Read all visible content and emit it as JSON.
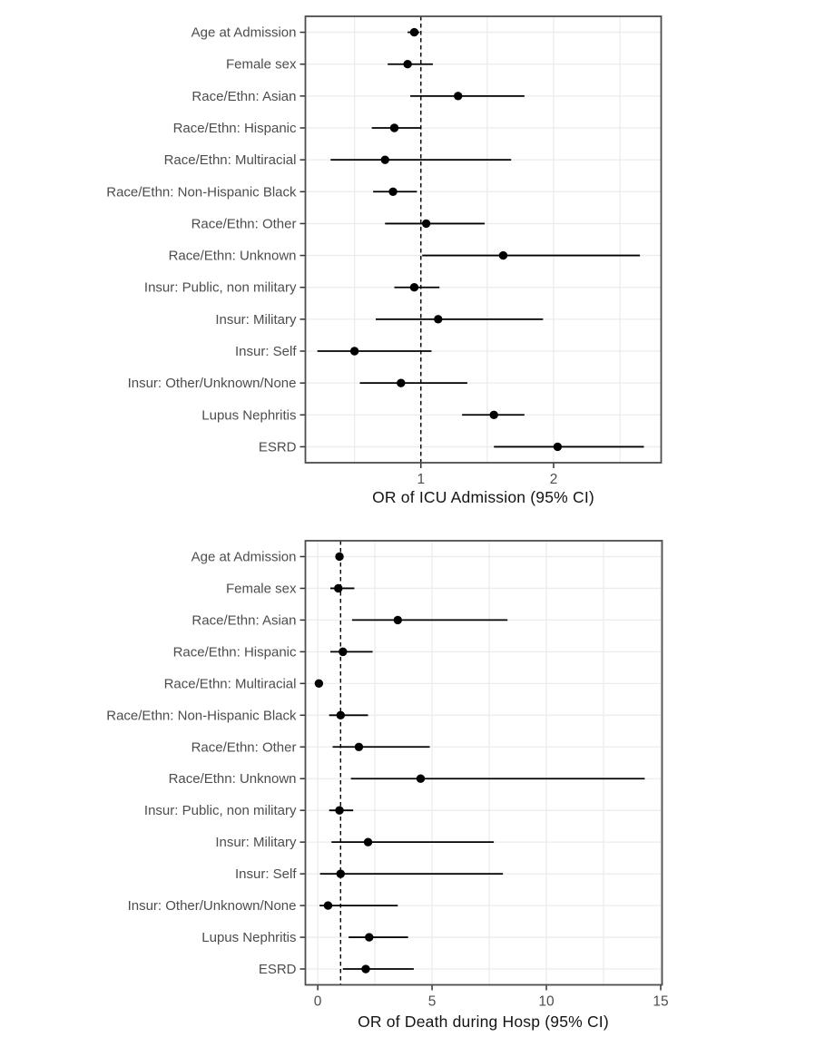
{
  "page": {
    "background": "#ffffff",
    "description": "Two stacked forest plots of odds ratios with 95% confidence intervals"
  },
  "styles": {
    "panel_border_color": "#4d4d4d",
    "grid_color": "#ececec",
    "tick_color": "#333333",
    "axis_text_color": "#4d4d4d",
    "title_color": "#141414",
    "data_color": "#000000",
    "panel_background": "#ffffff"
  },
  "chart_data": [
    {
      "type": "scatter",
      "subtype": "forest-plot",
      "orientation": "horizontal",
      "title": "",
      "xlabel": "OR of ICU Admission (95% CI)",
      "ylabel": "",
      "xlim": [
        0.13,
        2.81
      ],
      "x_ticks": [
        1,
        2
      ],
      "x_gridlines": [
        0.5,
        1,
        1.5,
        2,
        2.5
      ],
      "reference_line_x": 1,
      "reference_line_style": "dashed",
      "grid": true,
      "legend": false,
      "categories": [
        "Age at Admission",
        "Female sex",
        "Race/Ethn: Asian",
        "Race/Ethn: Hispanic",
        "Race/Ethn: Multiracial",
        "Race/Ethn: Non-Hispanic Black",
        "Race/Ethn: Other",
        "Race/Ethn: Unknown",
        "Insur: Public, non military",
        "Insur: Military",
        "Insur: Self",
        "Insur: Other/Unknown/None",
        "Lupus Nephritis",
        "ESRD"
      ],
      "series": [
        {
          "name": "Odds Ratio",
          "values": [
            0.95,
            0.9,
            1.28,
            0.8,
            0.73,
            0.79,
            1.04,
            1.62,
            0.95,
            1.13,
            0.5,
            0.85,
            1.55,
            2.03
          ]
        },
        {
          "name": "CI lower 95",
          "values": [
            0.9,
            0.75,
            0.92,
            0.63,
            0.32,
            0.64,
            0.73,
            1.01,
            0.8,
            0.66,
            0.22,
            0.54,
            1.31,
            1.55
          ]
        },
        {
          "name": "CI upper 95",
          "values": [
            0.99,
            1.09,
            1.78,
            1.0,
            1.68,
            0.97,
            1.48,
            2.65,
            1.14,
            1.92,
            1.08,
            1.35,
            1.78,
            2.68
          ]
        }
      ]
    },
    {
      "type": "scatter",
      "subtype": "forest-plot",
      "orientation": "horizontal",
      "title": "",
      "xlabel": "OR of Death during Hosp (95% CI)",
      "ylabel": "",
      "xlim": [
        -0.54,
        15.06
      ],
      "x_ticks": [
        0,
        5,
        10,
        15
      ],
      "x_gridlines": [
        0,
        2.5,
        5,
        7.5,
        10,
        12.5,
        15
      ],
      "reference_line_x": 1,
      "reference_line_style": "dashed",
      "grid": true,
      "legend": false,
      "categories": [
        "Age at Admission",
        "Female sex",
        "Race/Ethn: Asian",
        "Race/Ethn: Hispanic",
        "Race/Ethn: Multiracial",
        "Race/Ethn: Non-Hispanic Black",
        "Race/Ethn: Other",
        "Race/Ethn: Unknown",
        "Insur: Public, non military",
        "Insur: Military",
        "Insur: Self",
        "Insur: Other/Unknown/None",
        "Lupus Nephritis",
        "ESRD"
      ],
      "series": [
        {
          "name": "Odds Ratio",
          "values": [
            0.95,
            0.9,
            3.5,
            1.1,
            0.05,
            1.0,
            1.8,
            4.5,
            0.95,
            2.2,
            1.0,
            0.45,
            2.25,
            2.1
          ]
        },
        {
          "name": "CI lower 95",
          "values": [
            0.85,
            0.55,
            1.5,
            0.55,
            0.0,
            0.5,
            0.65,
            1.45,
            0.5,
            0.6,
            0.1,
            0.08,
            1.35,
            1.1
          ]
        },
        {
          "name": "CI upper 95",
          "values": [
            1.1,
            1.6,
            8.3,
            2.4,
            0.15,
            2.2,
            4.9,
            14.3,
            1.55,
            7.7,
            8.1,
            3.5,
            3.95,
            4.2
          ]
        }
      ]
    }
  ]
}
